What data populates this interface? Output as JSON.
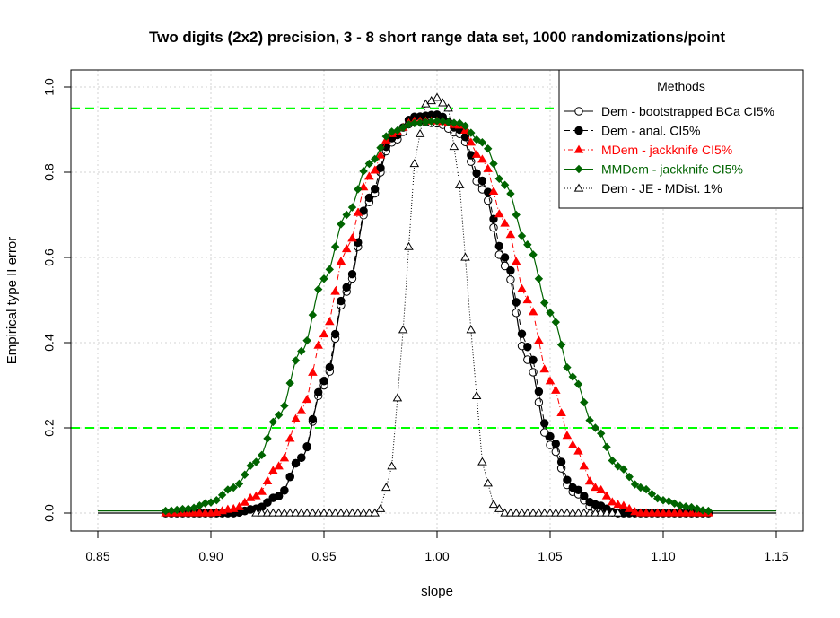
{
  "chart_data": {
    "type": "line",
    "title": "Two digits (2x2) precision, 3 - 8 short range data set, 1000 randomizations/point",
    "xlabel": "slope",
    "ylabel": "Empirical type II error",
    "xlim": [
      0.85,
      1.15
    ],
    "ylim": [
      0,
      1.0
    ],
    "xticks": [
      "0.85",
      "0.90",
      "0.95",
      "1.00",
      "1.05",
      "1.10",
      "1.15"
    ],
    "yticks": [
      "0.0",
      "0.2",
      "0.4",
      "0.6",
      "0.8",
      "1.0"
    ],
    "grid": true,
    "reference_lines": [
      {
        "y": 0.95,
        "color": "#00ff00",
        "style": "dashed"
      },
      {
        "y": 0.2,
        "color": "#00ff00",
        "style": "dashed"
      }
    ],
    "legend": {
      "title": "Methods",
      "position": "top-right",
      "entries": [
        {
          "label": "Dem - bootstrapped BCa CI5%",
          "color": "#000000",
          "marker": "open-circle",
          "line": "solid"
        },
        {
          "label": "Dem - anal. CI5%",
          "color": "#000000",
          "marker": "filled-circle",
          "line": "dashed"
        },
        {
          "label": "MDem - jackknife CI5%",
          "color": "#ff0000",
          "marker": "filled-triangle",
          "line": "dotdash"
        },
        {
          "label": "MMDem - jackknife CI5%",
          "color": "#006400",
          "marker": "filled-diamond",
          "line": "solid"
        },
        {
          "label": "Dem - JE - MDist. 1%",
          "color": "#000000",
          "marker": "open-triangle",
          "line": "dotted"
        }
      ]
    },
    "series": [
      {
        "name": "Dem - bootstrapped BCa CI5%",
        "color": "#000000",
        "x_range": [
          0.88,
          1.12
        ],
        "x_step": 0.0025,
        "points": [
          [
            0.88,
            0.0
          ],
          [
            0.91,
            0.0
          ],
          [
            0.92,
            0.01
          ],
          [
            0.93,
            0.04
          ],
          [
            0.94,
            0.13
          ],
          [
            0.95,
            0.3
          ],
          [
            0.96,
            0.52
          ],
          [
            0.97,
            0.73
          ],
          [
            0.98,
            0.87
          ],
          [
            0.99,
            0.92
          ],
          [
            1.0,
            0.915
          ],
          [
            1.01,
            0.89
          ],
          [
            1.02,
            0.76
          ],
          [
            1.03,
            0.58
          ],
          [
            1.04,
            0.36
          ],
          [
            1.05,
            0.16
          ],
          [
            1.06,
            0.05
          ],
          [
            1.07,
            0.01
          ],
          [
            1.08,
            0.0
          ],
          [
            1.12,
            0.0
          ]
        ]
      },
      {
        "name": "Dem - anal. CI5%",
        "color": "#000000",
        "x_range": [
          0.88,
          1.12
        ],
        "x_step": 0.0025,
        "points": [
          [
            0.88,
            0.0
          ],
          [
            0.91,
            0.0
          ],
          [
            0.92,
            0.01
          ],
          [
            0.93,
            0.04
          ],
          [
            0.94,
            0.13
          ],
          [
            0.95,
            0.31
          ],
          [
            0.96,
            0.53
          ],
          [
            0.97,
            0.74
          ],
          [
            0.98,
            0.88
          ],
          [
            0.99,
            0.93
          ],
          [
            1.0,
            0.935
          ],
          [
            1.01,
            0.9
          ],
          [
            1.02,
            0.78
          ],
          [
            1.03,
            0.6
          ],
          [
            1.04,
            0.39
          ],
          [
            1.05,
            0.18
          ],
          [
            1.06,
            0.06
          ],
          [
            1.07,
            0.02
          ],
          [
            1.08,
            0.0
          ],
          [
            1.12,
            0.0
          ]
        ]
      },
      {
        "name": "MDem - jackknife CI5%",
        "color": "#ff0000",
        "x_range": [
          0.88,
          1.12
        ],
        "x_step": 0.0025,
        "points": [
          [
            0.88,
            0.0
          ],
          [
            0.9,
            0.0
          ],
          [
            0.91,
            0.01
          ],
          [
            0.92,
            0.04
          ],
          [
            0.93,
            0.11
          ],
          [
            0.94,
            0.24
          ],
          [
            0.95,
            0.42
          ],
          [
            0.96,
            0.62
          ],
          [
            0.97,
            0.79
          ],
          [
            0.98,
            0.89
          ],
          [
            0.99,
            0.92
          ],
          [
            1.0,
            0.92
          ],
          [
            1.01,
            0.91
          ],
          [
            1.02,
            0.83
          ],
          [
            1.03,
            0.68
          ],
          [
            1.04,
            0.5
          ],
          [
            1.05,
            0.31
          ],
          [
            1.06,
            0.16
          ],
          [
            1.07,
            0.06
          ],
          [
            1.08,
            0.02
          ],
          [
            1.09,
            0.0
          ],
          [
            1.12,
            0.0
          ]
        ]
      },
      {
        "name": "MMDem - jackknife CI5%",
        "color": "#006400",
        "x_range": [
          0.88,
          1.12
        ],
        "x_step": 0.0025,
        "points": [
          [
            0.88,
            0.005
          ],
          [
            0.89,
            0.01
          ],
          [
            0.9,
            0.025
          ],
          [
            0.91,
            0.06
          ],
          [
            0.92,
            0.12
          ],
          [
            0.93,
            0.23
          ],
          [
            0.94,
            0.38
          ],
          [
            0.95,
            0.55
          ],
          [
            0.96,
            0.7
          ],
          [
            0.97,
            0.82
          ],
          [
            0.98,
            0.895
          ],
          [
            0.99,
            0.915
          ],
          [
            1.0,
            0.92
          ],
          [
            1.01,
            0.915
          ],
          [
            1.02,
            0.87
          ],
          [
            1.03,
            0.77
          ],
          [
            1.04,
            0.63
          ],
          [
            1.05,
            0.47
          ],
          [
            1.06,
            0.32
          ],
          [
            1.07,
            0.2
          ],
          [
            1.08,
            0.11
          ],
          [
            1.09,
            0.06
          ],
          [
            1.1,
            0.03
          ],
          [
            1.11,
            0.015
          ],
          [
            1.12,
            0.005
          ]
        ]
      },
      {
        "name": "Dem - JE - MDist. 1%",
        "color": "#000000",
        "x_range": [
          0.92,
          1.08
        ],
        "x_step": 0.0025,
        "points": [
          [
            0.92,
            0.0
          ],
          [
            0.9725,
            0.0
          ],
          [
            0.975,
            0.01
          ],
          [
            0.98,
            0.11
          ],
          [
            0.985,
            0.43
          ],
          [
            0.99,
            0.82
          ],
          [
            0.995,
            0.96
          ],
          [
            1.0,
            0.975
          ],
          [
            1.005,
            0.95
          ],
          [
            1.01,
            0.77
          ],
          [
            1.015,
            0.43
          ],
          [
            1.02,
            0.12
          ],
          [
            1.025,
            0.02
          ],
          [
            1.03,
            0.0
          ],
          [
            1.08,
            0.0
          ]
        ]
      }
    ],
    "smooth_curves": [
      {
        "series": "Dem - bootstrapped BCa CI5%",
        "x_range": [
          0.85,
          1.15
        ]
      },
      {
        "series": "MMDem - jackknife CI5%",
        "x_range": [
          0.85,
          1.15
        ]
      }
    ]
  }
}
